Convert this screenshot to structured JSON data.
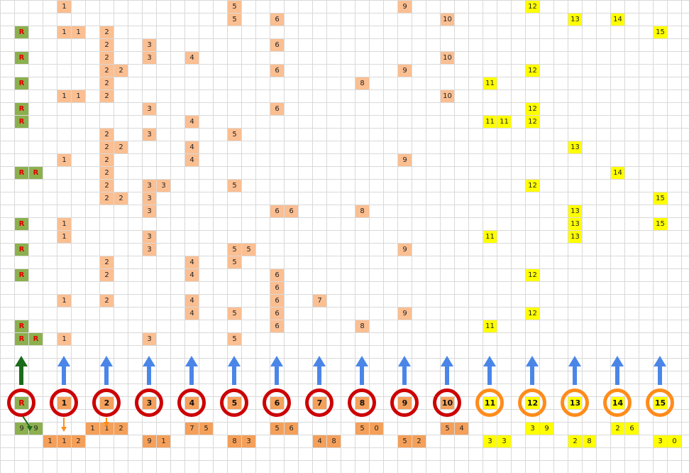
{
  "colors": {
    "r_fill": "#8cb04e",
    "light_orange": "#fbbf92",
    "orange": "#f5a05a",
    "yellow": "#ffff00",
    "red_circle": "#cc0000",
    "orange_circle": "#ff8c1a",
    "blue_arrow": "#4a86e8",
    "green_arrow": "#1a6b1a",
    "orange_arrow": "#ff8c1a"
  },
  "rows": [
    [
      [
        4,
        "1"
      ],
      [
        16,
        "5"
      ],
      [
        28,
        "9"
      ],
      [
        37,
        "12"
      ]
    ],
    [
      [
        16,
        "5"
      ],
      [
        19,
        "6"
      ],
      [
        31,
        "10"
      ],
      [
        40,
        "13"
      ],
      [
        43,
        "14"
      ]
    ],
    [
      [
        1,
        "R"
      ],
      [
        4,
        "1"
      ],
      [
        5,
        "1"
      ],
      [
        7,
        "2"
      ],
      [
        46,
        "15"
      ]
    ],
    [
      [
        7,
        "2"
      ],
      [
        10,
        "3"
      ],
      [
        19,
        "6"
      ]
    ],
    [
      [
        1,
        "R"
      ],
      [
        7,
        "2"
      ],
      [
        10,
        "3"
      ],
      [
        13,
        "4"
      ],
      [
        31,
        "10"
      ]
    ],
    [
      [
        7,
        "2"
      ],
      [
        8,
        "2"
      ],
      [
        19,
        "6"
      ],
      [
        28,
        "9"
      ],
      [
        37,
        "12"
      ]
    ],
    [
      [
        1,
        "R"
      ],
      [
        7,
        "2"
      ],
      [
        25,
        "8"
      ],
      [
        34,
        "11"
      ]
    ],
    [
      [
        4,
        "1"
      ],
      [
        5,
        "1"
      ],
      [
        7,
        "2"
      ],
      [
        31,
        "10"
      ]
    ],
    [
      [
        1,
        "R"
      ],
      [
        10,
        "3"
      ],
      [
        19,
        "6"
      ],
      [
        37,
        "12"
      ]
    ],
    [
      [
        1,
        "R"
      ],
      [
        13,
        "4"
      ],
      [
        34,
        "11"
      ],
      [
        35,
        "11"
      ],
      [
        37,
        "12"
      ]
    ],
    [
      [
        7,
        "2"
      ],
      [
        10,
        "3"
      ],
      [
        16,
        "5"
      ]
    ],
    [
      [
        7,
        "2"
      ],
      [
        8,
        "2"
      ],
      [
        13,
        "4"
      ],
      [
        40,
        "13"
      ]
    ],
    [
      [
        4,
        "1"
      ],
      [
        7,
        "2"
      ],
      [
        13,
        "4"
      ],
      [
        28,
        "9"
      ]
    ],
    [
      [
        1,
        "R"
      ],
      [
        2,
        "R"
      ],
      [
        7,
        "2"
      ],
      [
        43,
        "14"
      ]
    ],
    [
      [
        7,
        "2"
      ],
      [
        10,
        "3"
      ],
      [
        11,
        "3"
      ],
      [
        16,
        "5"
      ],
      [
        37,
        "12"
      ]
    ],
    [
      [
        7,
        "2"
      ],
      [
        8,
        "2"
      ],
      [
        10,
        "3"
      ],
      [
        46,
        "15"
      ]
    ],
    [
      [
        10,
        "3"
      ],
      [
        19,
        "6"
      ],
      [
        20,
        "6"
      ],
      [
        25,
        "8"
      ],
      [
        40,
        "13"
      ]
    ],
    [
      [
        1,
        "R"
      ],
      [
        4,
        "1"
      ],
      [
        40,
        "13"
      ],
      [
        46,
        "15"
      ]
    ],
    [
      [
        4,
        "1"
      ],
      [
        10,
        "3"
      ],
      [
        34,
        "11"
      ],
      [
        40,
        "13"
      ]
    ],
    [
      [
        1,
        "R"
      ],
      [
        10,
        "3"
      ],
      [
        16,
        "5"
      ],
      [
        17,
        "5"
      ],
      [
        28,
        "9"
      ]
    ],
    [
      [
        7,
        "2"
      ],
      [
        13,
        "4"
      ],
      [
        16,
        "5"
      ]
    ],
    [
      [
        1,
        "R"
      ],
      [
        7,
        "2"
      ],
      [
        13,
        "4"
      ],
      [
        19,
        "6"
      ],
      [
        37,
        "12"
      ]
    ],
    [
      [
        19,
        "6"
      ]
    ],
    [
      [
        4,
        "1"
      ],
      [
        7,
        "2"
      ],
      [
        13,
        "4"
      ],
      [
        19,
        "6"
      ],
      [
        22,
        "7"
      ]
    ],
    [
      [
        13,
        "4"
      ],
      [
        16,
        "5"
      ],
      [
        19,
        "6"
      ],
      [
        28,
        "9"
      ],
      [
        37,
        "12"
      ]
    ],
    [
      [
        1,
        "R"
      ],
      [
        19,
        "6"
      ],
      [
        25,
        "8"
      ],
      [
        34,
        "11"
      ]
    ],
    [
      [
        1,
        "R"
      ],
      [
        2,
        "R"
      ],
      [
        4,
        "1"
      ],
      [
        10,
        "3"
      ],
      [
        16,
        "5"
      ]
    ]
  ],
  "markers": [
    "R",
    "1",
    "2",
    "3",
    "4",
    "5",
    "6",
    "7",
    "8",
    "9",
    "10",
    "11",
    "12",
    "13",
    "14",
    "15"
  ],
  "totals_row1": [
    [
      1,
      "9"
    ],
    [
      2,
      "9"
    ],
    [
      6,
      "1"
    ],
    [
      7,
      "1"
    ],
    [
      8,
      "2"
    ],
    [
      13,
      "7"
    ],
    [
      14,
      "5"
    ],
    [
      19,
      "5"
    ],
    [
      20,
      "6"
    ],
    [
      25,
      "5"
    ],
    [
      26,
      "0"
    ],
    [
      31,
      "5"
    ],
    [
      32,
      "4"
    ],
    [
      37,
      "3"
    ],
    [
      38,
      "9"
    ],
    [
      43,
      "2"
    ],
    [
      44,
      "6"
    ]
  ],
  "totals_row2": [
    [
      3,
      "1"
    ],
    [
      4,
      "1"
    ],
    [
      5,
      "2"
    ],
    [
      10,
      "9"
    ],
    [
      11,
      "1"
    ],
    [
      16,
      "8"
    ],
    [
      17,
      "3"
    ],
    [
      22,
      "4"
    ],
    [
      23,
      "8"
    ],
    [
      28,
      "5"
    ],
    [
      29,
      "2"
    ],
    [
      34,
      "3"
    ],
    [
      35,
      "3"
    ],
    [
      40,
      "2"
    ],
    [
      41,
      "8"
    ],
    [
      46,
      "3"
    ],
    [
      47,
      "0"
    ]
  ]
}
